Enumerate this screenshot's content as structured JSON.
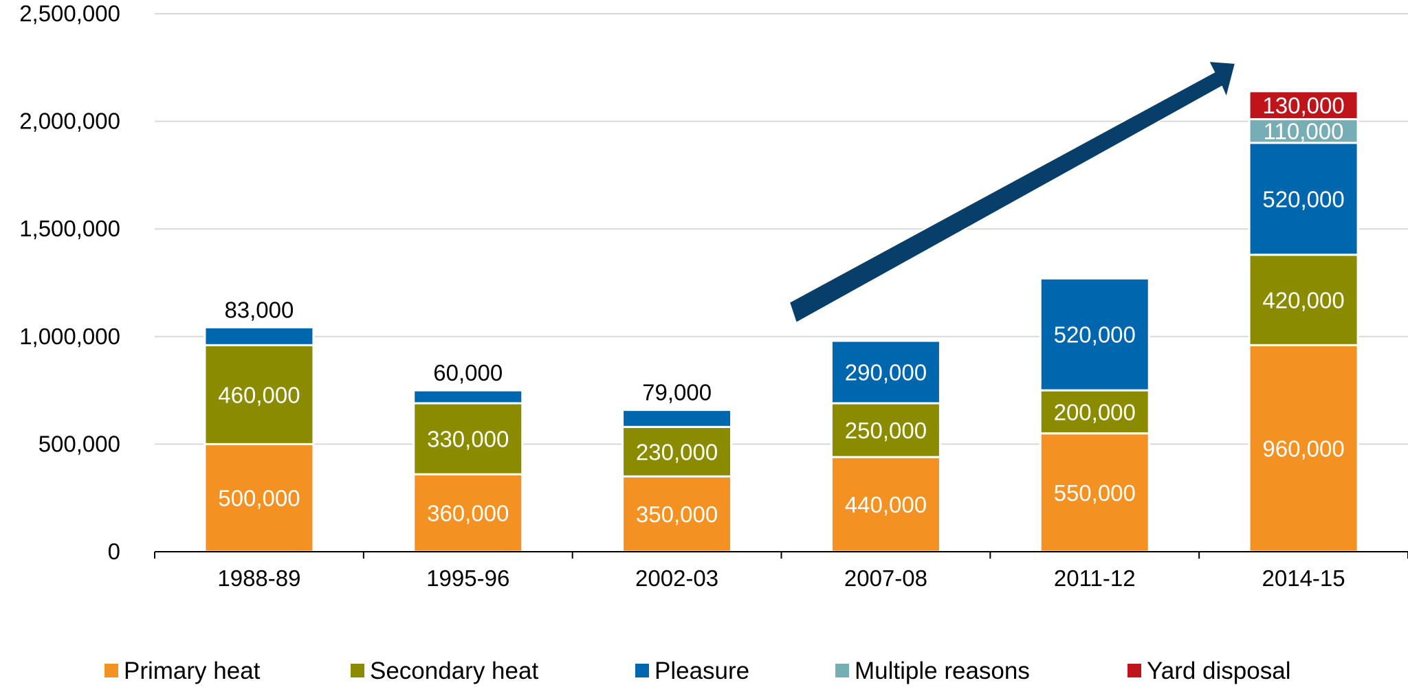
{
  "chart_data": {
    "type": "bar",
    "stacked": true,
    "categories": [
      "1988-89",
      "1995-96",
      "2002-03",
      "2007-08",
      "2011-12",
      "2014-15"
    ],
    "series": [
      {
        "name": "Primary heat",
        "color": "#F39122",
        "values": [
          500000,
          360000,
          350000,
          440000,
          550000,
          960000
        ]
      },
      {
        "name": "Secondary heat",
        "color": "#8B8B00",
        "values": [
          460000,
          330000,
          230000,
          250000,
          200000,
          420000
        ]
      },
      {
        "name": "Pleasure",
        "color": "#0066AE",
        "values": [
          83000,
          60000,
          79000,
          290000,
          520000,
          520000
        ]
      },
      {
        "name": "Multiple reasons",
        "color": "#77ADB5",
        "values": [
          0,
          0,
          0,
          0,
          0,
          110000
        ]
      },
      {
        "name": "Yard disposal",
        "color": "#C0141B",
        "values": [
          0,
          0,
          0,
          0,
          0,
          130000
        ]
      }
    ],
    "data_labels": [
      [
        "500,000",
        "460,000",
        "83,000",
        "",
        ""
      ],
      [
        "360,000",
        "330,000",
        "60,000",
        "",
        ""
      ],
      [
        "350,000",
        "230,000",
        "79,000",
        "",
        ""
      ],
      [
        "440,000",
        "250,000",
        "290,000",
        "",
        ""
      ],
      [
        "550,000",
        "200,000",
        "520,000",
        "",
        ""
      ],
      [
        "960,000",
        "420,000",
        "520,000",
        "110,000",
        "130,000"
      ]
    ],
    "y_ticks": [
      {
        "value": 0,
        "label": "0"
      },
      {
        "value": 500000,
        "label": "500,000"
      },
      {
        "value": 1000000,
        "label": "1,000,000"
      },
      {
        "value": 1500000,
        "label": "1,500,000"
      },
      {
        "value": 2000000,
        "label": "2,000,000"
      },
      {
        "value": 2500000,
        "label": "2,500,000"
      }
    ],
    "ylim": [
      0,
      2500000
    ],
    "grid": true,
    "legend_position": "bottom",
    "annotation": {
      "type": "arrow",
      "description": "upward trend",
      "color": "#083F6A"
    },
    "title": "",
    "xlabel": "",
    "ylabel": ""
  }
}
